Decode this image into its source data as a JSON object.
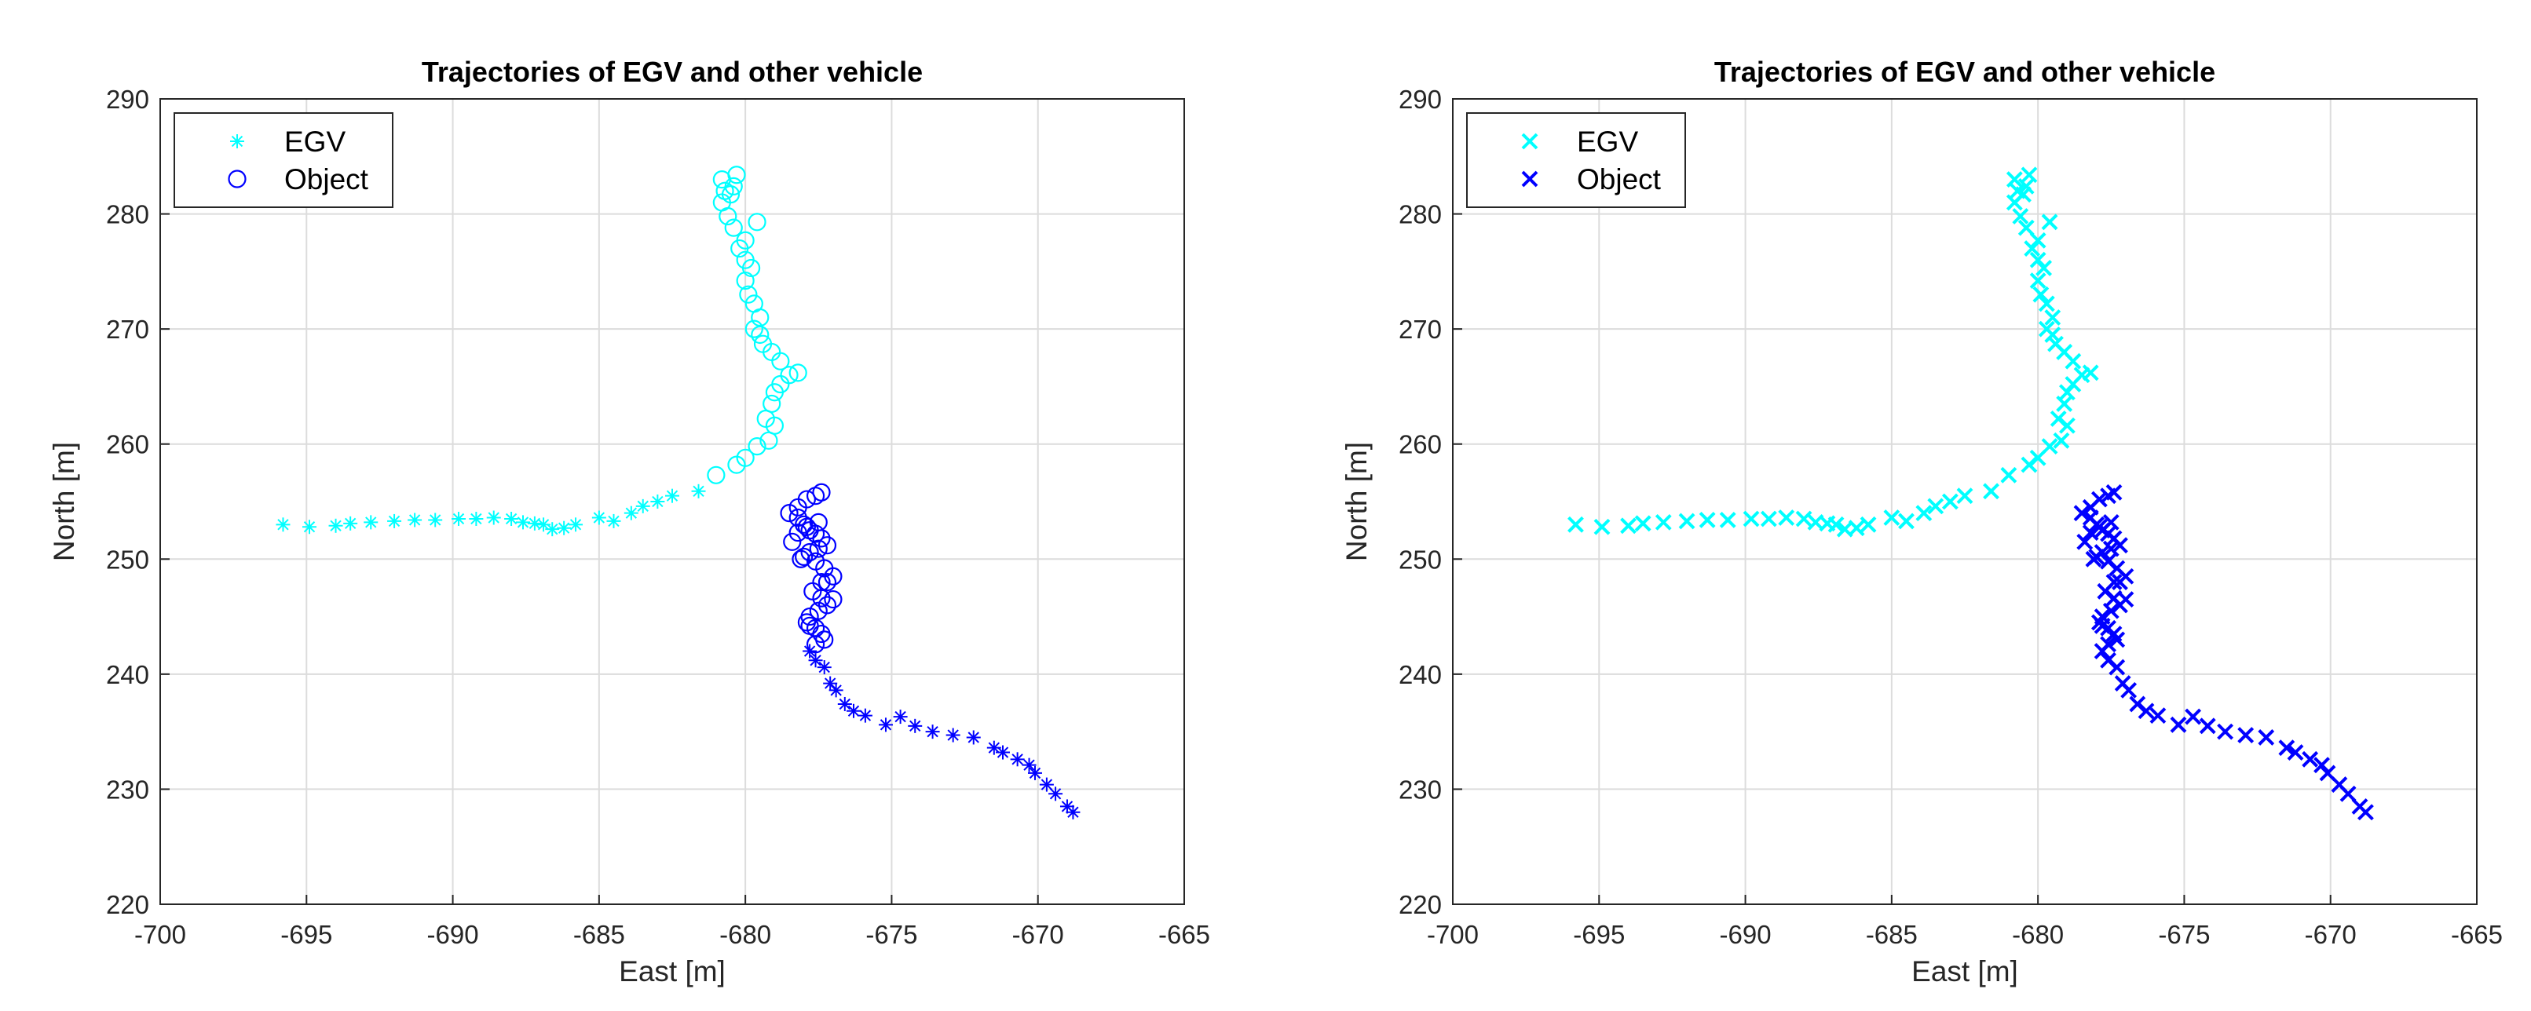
{
  "colors": {
    "egv": "#00FFFF",
    "object": "#0000FF",
    "grid": "#dcdcdc",
    "axis": "#262626",
    "text": "#262626"
  },
  "chart_data": [
    {
      "type": "scatter",
      "title": "Trajectories of EGV and other vehicle",
      "xlabel": "East [m]",
      "ylabel": "North [m]",
      "xlim": [
        -700,
        -665
      ],
      "ylim": [
        220,
        290
      ],
      "xticks": [
        "-700",
        "-695",
        "-690",
        "-685",
        "-680",
        "-675",
        "-670",
        "-665"
      ],
      "yticks": [
        "220",
        "230",
        "240",
        "250",
        "260",
        "270",
        "280",
        "290"
      ],
      "grid": true,
      "legend_position": "top-left",
      "series": [
        {
          "name": "EGV",
          "marker": "asterisk",
          "x": [
            -695.8,
            -694.9,
            -694.0,
            -693.5,
            -692.8,
            -692.0,
            -691.3,
            -690.6,
            -689.8,
            -689.2,
            -688.6,
            -688.0,
            -687.6,
            -687.2,
            -686.9,
            -686.6,
            -686.2,
            -685.8,
            -685.0,
            -684.5,
            -683.9,
            -683.5,
            -683.0,
            -682.5,
            -681.6
          ],
          "y": [
            253.0,
            252.8,
            252.9,
            253.1,
            253.2,
            253.3,
            253.4,
            253.4,
            253.5,
            253.5,
            253.6,
            253.5,
            253.2,
            253.1,
            253.0,
            252.6,
            252.7,
            253.0,
            253.6,
            253.3,
            254.0,
            254.6,
            255.0,
            255.5,
            255.9
          ]
        },
        {
          "name": "EGV",
          "marker": "circle",
          "show_in_legend": false,
          "x": [
            -681.0,
            -680.3,
            -680.0,
            -679.6,
            -679.2,
            -679.0,
            -679.3,
            -679.1,
            -679.0,
            -678.8,
            -678.5,
            -678.2,
            -678.8,
            -679.1,
            -679.4,
            -679.5,
            -679.7,
            -679.5,
            -679.7,
            -679.9,
            -680.0,
            -679.8,
            -680.0,
            -680.2,
            -680.0,
            -680.4,
            -680.6,
            -680.8,
            -680.5,
            -680.7,
            -680.4,
            -680.8,
            -680.3,
            -679.6
          ],
          "y": [
            257.3,
            258.2,
            258.8,
            259.8,
            260.3,
            261.6,
            262.2,
            263.5,
            264.5,
            265.2,
            266.0,
            266.2,
            267.2,
            268.0,
            268.7,
            269.5,
            270.0,
            271.0,
            272.2,
            273.0,
            274.2,
            275.3,
            276.0,
            277.0,
            277.7,
            278.8,
            279.8,
            281.0,
            281.7,
            282.0,
            282.4,
            283.0,
            283.4,
            279.3
          ]
        },
        {
          "name": "Object",
          "marker": "circle",
          "x": [
            -677.4,
            -677.6,
            -677.9,
            -678.2,
            -678.5,
            -678.2,
            -678.0,
            -677.8,
            -677.6,
            -677.4,
            -677.2,
            -677.5,
            -677.8,
            -678.0,
            -677.6,
            -677.3,
            -677.0,
            -677.4,
            -677.7,
            -677.4,
            -677.2,
            -677.5,
            -677.8,
            -677.9,
            -677.6,
            -677.4,
            -677.3,
            -677.6,
            -677.8,
            -678.4,
            -678.2,
            -677.9,
            -677.5,
            -677.0,
            -677.2,
            -678.1
          ],
          "y": [
            255.8,
            255.5,
            255.2,
            254.5,
            254.0,
            253.6,
            253.0,
            252.5,
            252.2,
            251.8,
            251.2,
            250.9,
            250.6,
            250.2,
            249.8,
            249.2,
            248.5,
            248.0,
            247.2,
            246.6,
            246.0,
            245.5,
            245.0,
            244.5,
            244.0,
            243.5,
            243.0,
            242.6,
            244.2,
            251.5,
            252.3,
            252.8,
            253.2,
            246.5,
            248.0,
            250.0
          ]
        },
        {
          "name": "Object",
          "marker": "asterisk",
          "show_in_legend": false,
          "x": [
            -677.8,
            -677.6,
            -677.3,
            -677.1,
            -676.9,
            -676.6,
            -676.3,
            -675.9,
            -675.2,
            -674.7,
            -674.2,
            -673.6,
            -672.9,
            -672.2,
            -671.5,
            -671.2,
            -670.7,
            -670.3,
            -670.1,
            -669.7,
            -669.4,
            -669.0,
            -668.8
          ],
          "y": [
            242.0,
            241.2,
            240.6,
            239.2,
            238.6,
            237.4,
            236.8,
            236.4,
            235.6,
            236.3,
            235.5,
            235.0,
            234.7,
            234.5,
            233.6,
            233.2,
            232.6,
            232.1,
            231.4,
            230.4,
            229.6,
            228.5,
            228.0
          ]
        }
      ]
    },
    {
      "type": "scatter",
      "title": "Trajectories of EGV and other vehicle",
      "xlabel": "East [m]",
      "ylabel": "North [m]",
      "xlim": [
        -700,
        -665
      ],
      "ylim": [
        220,
        290
      ],
      "xticks": [
        "-700",
        "-695",
        "-690",
        "-685",
        "-680",
        "-675",
        "-670",
        "-665"
      ],
      "yticks": [
        "220",
        "230",
        "240",
        "250",
        "260",
        "270",
        "280",
        "290"
      ],
      "grid": true,
      "legend_position": "top-left",
      "series": [
        {
          "name": "EGV",
          "marker": "x",
          "x": [
            -695.8,
            -694.9,
            -694.0,
            -693.5,
            -692.8,
            -692.0,
            -691.3,
            -690.6,
            -689.8,
            -689.2,
            -688.6,
            -688.0,
            -687.6,
            -687.2,
            -686.9,
            -686.6,
            -686.2,
            -685.8,
            -685.0,
            -684.5,
            -683.9,
            -683.5,
            -683.0,
            -682.5,
            -681.6,
            -681.0,
            -680.3,
            -680.0,
            -679.6,
            -679.2,
            -679.0,
            -679.3,
            -679.1,
            -679.0,
            -678.8,
            -678.5,
            -678.2,
            -678.8,
            -679.1,
            -679.4,
            -679.5,
            -679.7,
            -679.5,
            -679.7,
            -679.9,
            -680.0,
            -679.8,
            -680.0,
            -680.2,
            -680.0,
            -680.4,
            -680.6,
            -680.8,
            -680.5,
            -680.7,
            -680.4,
            -680.8,
            -680.3,
            -679.6
          ],
          "y": [
            253.0,
            252.8,
            252.9,
            253.1,
            253.2,
            253.3,
            253.4,
            253.4,
            253.5,
            253.5,
            253.6,
            253.5,
            253.2,
            253.1,
            253.0,
            252.6,
            252.7,
            253.0,
            253.6,
            253.3,
            254.0,
            254.6,
            255.0,
            255.5,
            255.9,
            257.3,
            258.2,
            258.8,
            259.8,
            260.3,
            261.6,
            262.2,
            263.5,
            264.5,
            265.2,
            266.0,
            266.2,
            267.2,
            268.0,
            268.7,
            269.5,
            270.0,
            271.0,
            272.2,
            273.0,
            274.2,
            275.3,
            276.0,
            277.0,
            277.7,
            278.8,
            279.8,
            281.0,
            281.7,
            282.0,
            282.4,
            283.0,
            283.4,
            279.3
          ]
        },
        {
          "name": "Object",
          "marker": "x",
          "x": [
            -677.4,
            -677.6,
            -677.9,
            -678.2,
            -678.5,
            -678.2,
            -678.0,
            -677.8,
            -677.6,
            -677.4,
            -677.2,
            -677.5,
            -677.8,
            -678.0,
            -677.6,
            -677.3,
            -677.0,
            -677.4,
            -677.7,
            -677.4,
            -677.2,
            -677.5,
            -677.8,
            -677.9,
            -677.6,
            -677.4,
            -677.3,
            -677.6,
            -677.8,
            -678.4,
            -678.2,
            -677.9,
            -677.5,
            -677.0,
            -677.2,
            -678.1,
            -677.8,
            -677.6,
            -677.3,
            -677.1,
            -676.9,
            -676.6,
            -676.3,
            -675.9,
            -675.2,
            -674.7,
            -674.2,
            -673.6,
            -672.9,
            -672.2,
            -671.5,
            -671.2,
            -670.7,
            -670.3,
            -670.1,
            -669.7,
            -669.4,
            -669.0,
            -668.8
          ],
          "y": [
            255.8,
            255.5,
            255.2,
            254.5,
            254.0,
            253.6,
            253.0,
            252.5,
            252.2,
            251.8,
            251.2,
            250.9,
            250.6,
            250.2,
            249.8,
            249.2,
            248.5,
            248.0,
            247.2,
            246.6,
            246.0,
            245.5,
            245.0,
            244.5,
            244.0,
            243.5,
            243.0,
            242.6,
            244.2,
            251.5,
            252.3,
            252.8,
            253.2,
            246.5,
            248.0,
            250.0,
            242.0,
            241.2,
            240.6,
            239.2,
            238.6,
            237.4,
            236.8,
            236.4,
            235.6,
            236.3,
            235.5,
            235.0,
            234.7,
            234.5,
            233.6,
            233.2,
            232.6,
            232.1,
            231.4,
            230.4,
            229.6,
            228.5,
            228.0
          ]
        }
      ]
    }
  ]
}
